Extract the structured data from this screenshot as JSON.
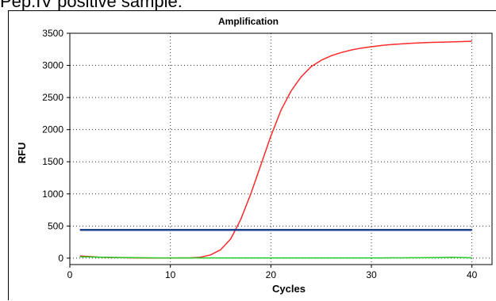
{
  "heading": "Pep.IV positive sample:",
  "chart_data": {
    "type": "line",
    "title": "Amplification",
    "xlabel": "Cycles",
    "ylabel": "RFU",
    "xlim": [
      0,
      42
    ],
    "ylim": [
      -100,
      3500
    ],
    "xticks": [
      0,
      10,
      20,
      30,
      40
    ],
    "yticks": [
      0,
      500,
      1000,
      1500,
      2000,
      2500,
      3000,
      3500
    ],
    "grid": true,
    "series": [
      {
        "color": "#ff2a2a",
        "x": [
          1,
          2,
          3,
          4,
          5,
          6,
          7,
          8,
          9,
          10,
          11,
          12,
          13,
          14,
          15,
          16,
          17,
          18,
          19,
          20,
          21,
          22,
          23,
          24,
          25,
          26,
          27,
          28,
          29,
          30,
          31,
          32,
          33,
          34,
          35,
          36,
          37,
          38,
          39,
          40
        ],
        "y": [
          35,
          25,
          15,
          10,
          8,
          5,
          3,
          2,
          2,
          2,
          3,
          5,
          15,
          50,
          130,
          300,
          600,
          1000,
          1450,
          1900,
          2300,
          2600,
          2820,
          2980,
          3080,
          3150,
          3200,
          3240,
          3270,
          3290,
          3310,
          3325,
          3335,
          3345,
          3352,
          3358,
          3362,
          3366,
          3370,
          3375
        ]
      },
      {
        "color": "#22cc22",
        "x": [
          1,
          2,
          3,
          4,
          5,
          6,
          7,
          8,
          9,
          10,
          11,
          12,
          13,
          14,
          15,
          16,
          17,
          18,
          19,
          20,
          21,
          22,
          23,
          24,
          25,
          26,
          27,
          28,
          29,
          30,
          31,
          32,
          33,
          34,
          35,
          36,
          37,
          38,
          39,
          40
        ],
        "y": [
          20,
          18,
          15,
          12,
          10,
          8,
          6,
          5,
          4,
          3,
          3,
          3,
          3,
          3,
          3,
          3,
          3,
          3,
          3,
          3,
          3,
          3,
          3,
          3,
          3,
          3,
          3,
          4,
          4,
          4,
          4,
          5,
          5,
          6,
          6,
          8,
          10,
          12,
          10,
          5
        ]
      },
      {
        "color": "#1f3f8f",
        "x": [
          1,
          40
        ],
        "y": [
          440,
          440
        ]
      }
    ]
  }
}
